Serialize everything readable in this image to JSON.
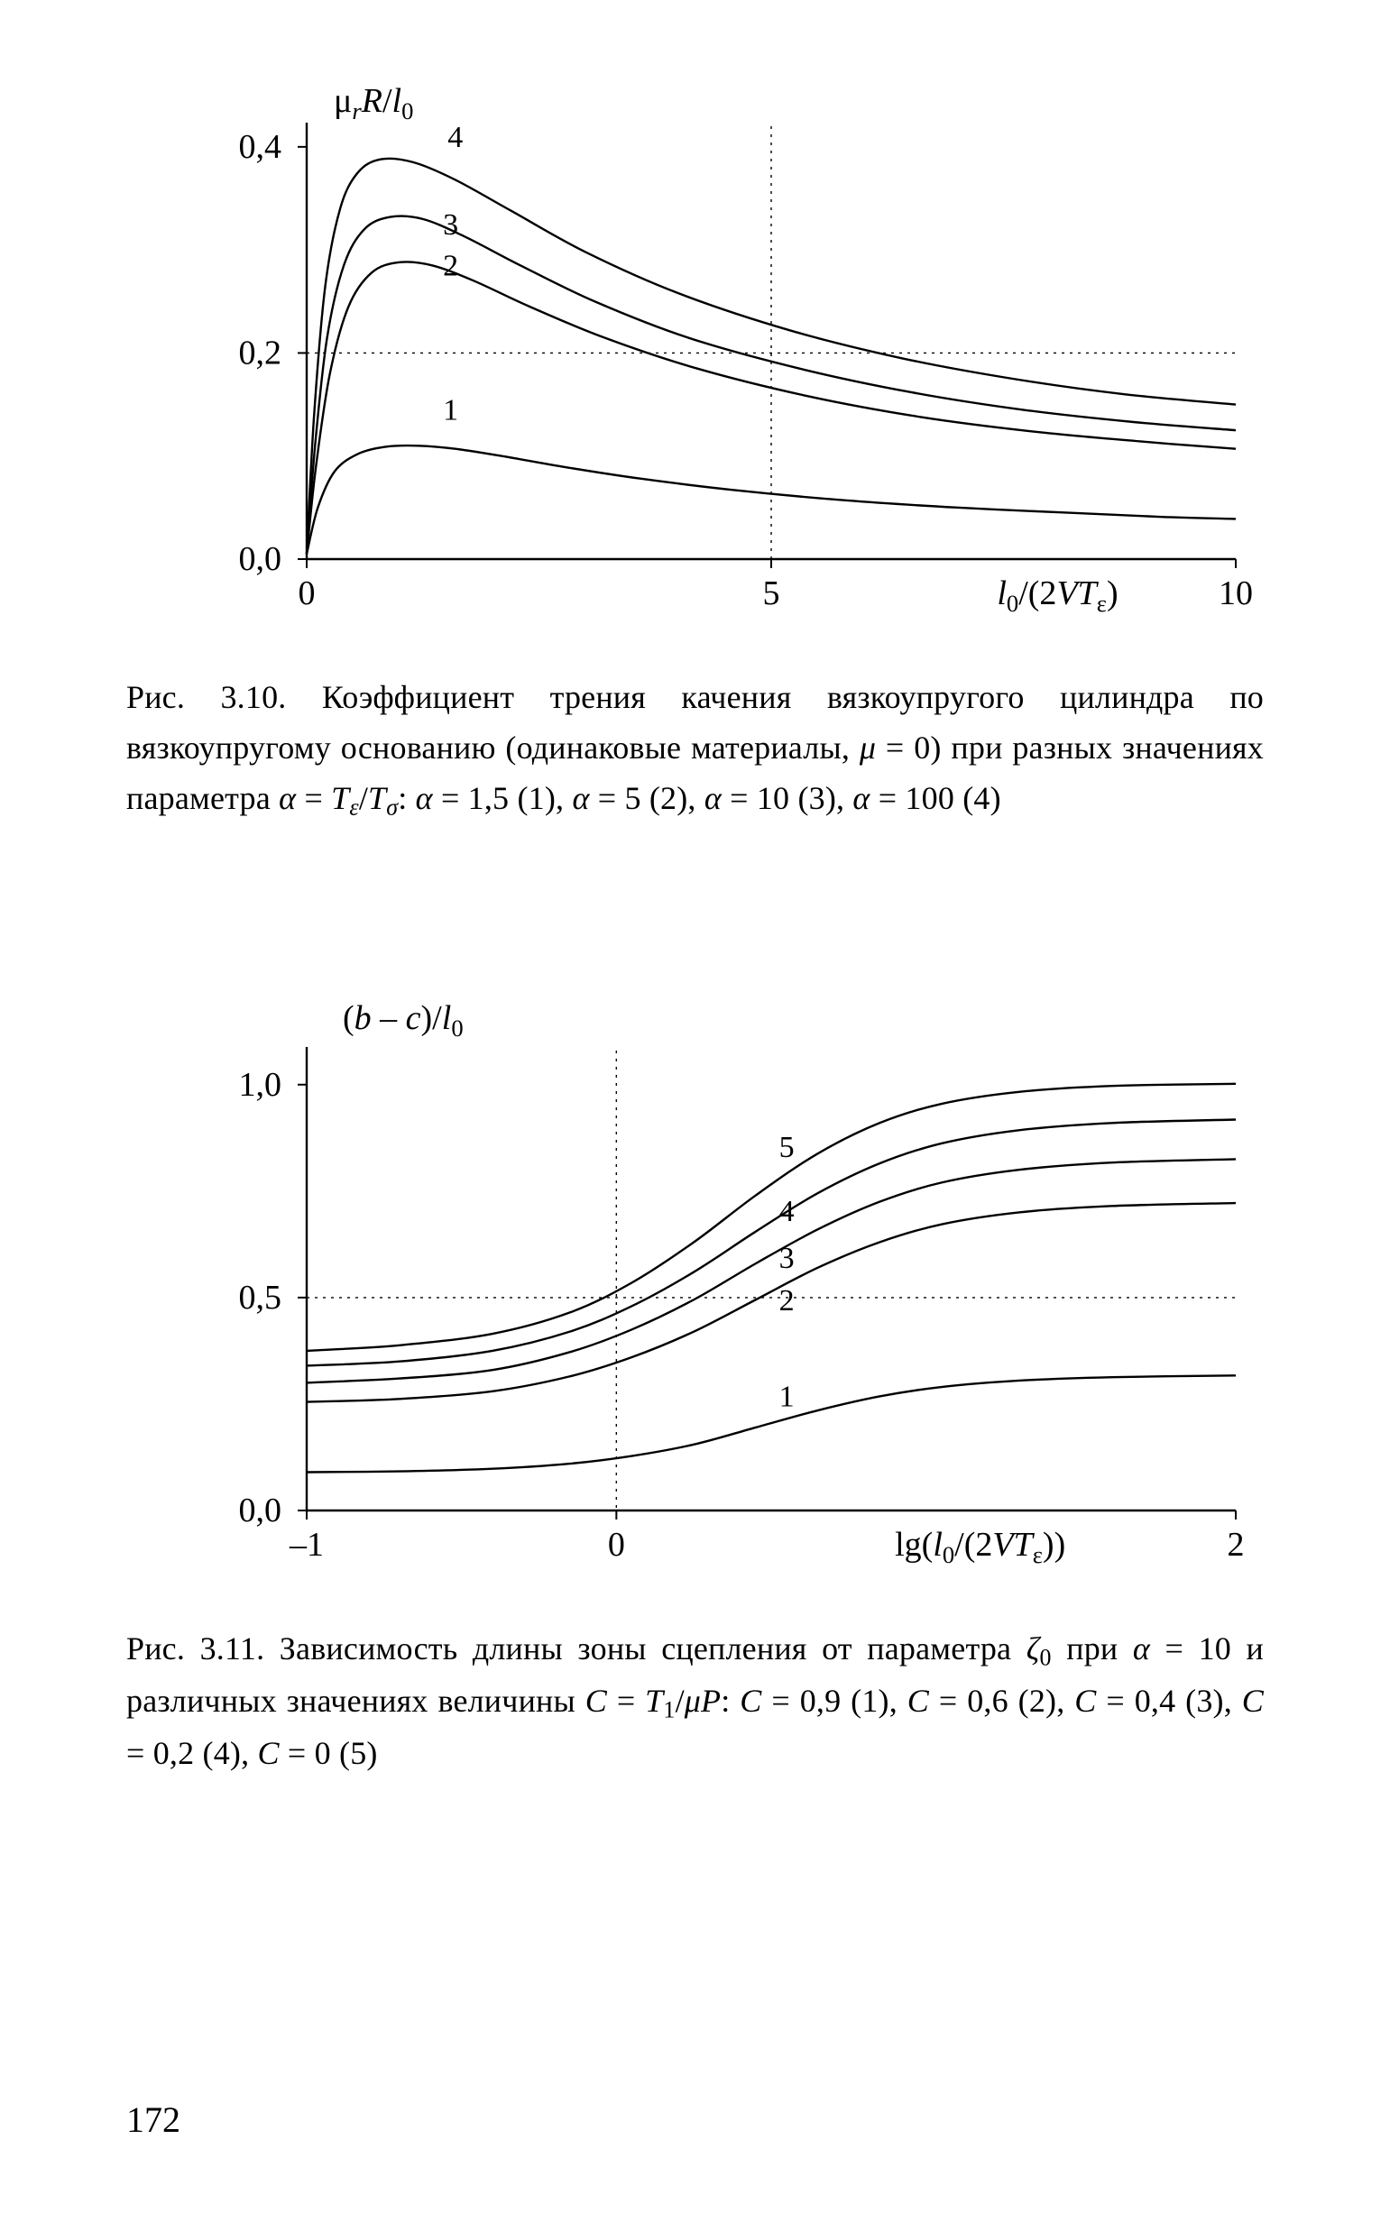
{
  "page_number": "172",
  "fig1": {
    "type": "line",
    "y_axis_label": "μᵣR/l₀",
    "x_axis_label_parts": {
      "l": "l",
      "sub1": "0",
      "mid": "/(2",
      "V": "V",
      "T": "T",
      "sub2": "ε",
      "end": ")"
    },
    "xlim": [
      0,
      10
    ],
    "ylim": [
      0,
      0.42
    ],
    "xticks": [
      0,
      5,
      10
    ],
    "xtick_labels": [
      "0",
      "5",
      "10"
    ],
    "yticks": [
      0.0,
      0.2,
      0.4
    ],
    "ytick_labels": [
      "0,0",
      "0,2",
      "0,4"
    ],
    "vgrid_at": [
      5
    ],
    "hgrid_at": [
      0.2
    ],
    "background_color": "#ffffff",
    "axis_color": "#000000",
    "grid_dash": "3,6",
    "line_color": "#000000",
    "line_width": 2.4,
    "curve_labels": {
      "1": {
        "x": 1.55,
        "y": 0.135
      },
      "2": {
        "x": 1.55,
        "y": 0.275
      },
      "3": {
        "x": 1.55,
        "y": 0.315
      },
      "4": {
        "x": 1.6,
        "y": 0.4
      }
    },
    "series": {
      "1": [
        [
          0,
          0.005
        ],
        [
          0.12,
          0.05
        ],
        [
          0.3,
          0.085
        ],
        [
          0.55,
          0.102
        ],
        [
          0.85,
          0.109
        ],
        [
          1.2,
          0.11
        ],
        [
          1.6,
          0.107
        ],
        [
          2.1,
          0.1
        ],
        [
          2.8,
          0.089
        ],
        [
          3.6,
          0.078
        ],
        [
          4.6,
          0.067
        ],
        [
          5.8,
          0.057
        ],
        [
          7.0,
          0.05
        ],
        [
          8.2,
          0.045
        ],
        [
          9.2,
          0.041
        ],
        [
          10.0,
          0.039
        ]
      ],
      "2": [
        [
          0,
          0.005
        ],
        [
          0.1,
          0.09
        ],
        [
          0.25,
          0.18
        ],
        [
          0.45,
          0.245
        ],
        [
          0.7,
          0.278
        ],
        [
          1.0,
          0.288
        ],
        [
          1.35,
          0.285
        ],
        [
          1.8,
          0.27
        ],
        [
          2.4,
          0.245
        ],
        [
          3.2,
          0.215
        ],
        [
          4.2,
          0.185
        ],
        [
          5.4,
          0.158
        ],
        [
          6.6,
          0.138
        ],
        [
          7.8,
          0.124
        ],
        [
          9.0,
          0.114
        ],
        [
          10.0,
          0.107
        ]
      ],
      "3": [
        [
          0,
          0.005
        ],
        [
          0.09,
          0.11
        ],
        [
          0.22,
          0.215
        ],
        [
          0.4,
          0.285
        ],
        [
          0.62,
          0.32
        ],
        [
          0.9,
          0.332
        ],
        [
          1.25,
          0.33
        ],
        [
          1.7,
          0.313
        ],
        [
          2.3,
          0.285
        ],
        [
          3.1,
          0.25
        ],
        [
          4.1,
          0.215
        ],
        [
          5.3,
          0.185
        ],
        [
          6.5,
          0.162
        ],
        [
          7.7,
          0.145
        ],
        [
          8.9,
          0.133
        ],
        [
          10.0,
          0.125
        ]
      ],
      "4": [
        [
          0,
          0.005
        ],
        [
          0.08,
          0.14
        ],
        [
          0.2,
          0.265
        ],
        [
          0.36,
          0.34
        ],
        [
          0.55,
          0.375
        ],
        [
          0.8,
          0.388
        ],
        [
          1.15,
          0.385
        ],
        [
          1.6,
          0.368
        ],
        [
          2.2,
          0.338
        ],
        [
          3.0,
          0.298
        ],
        [
          4.0,
          0.258
        ],
        [
          5.2,
          0.222
        ],
        [
          6.4,
          0.195
        ],
        [
          7.6,
          0.175
        ],
        [
          8.8,
          0.16
        ],
        [
          10.0,
          0.15
        ]
      ]
    },
    "caption_html": "Рис. 3.10. Коэффициент трения качения вязкоупругого цилиндра по вязкоупругому основанию (одинаковые материалы, <span class='ital'>μ</span> = 0) при разных значениях параметра <span class='ital'>α</span> = <span class='ital'>T<span class='sub'>ε</span></span>/<span class='ital'>T<span class='sub'>σ</span></span>: <span class='ital'>α</span> = 1,5 (1), <span class='ital'>α</span> = 5 (2), <span class='ital'>α</span> = 10 (3), <span class='ital'>α</span> = 100 (4)"
  },
  "fig2": {
    "type": "line",
    "y_axis_label_parts": {
      "open": "(",
      "b": "b",
      "dash": " – ",
      "c": "c",
      "close": ")/",
      "l": "l",
      "sub": "0"
    },
    "x_axis_label_parts": {
      "lg": "lg(",
      "l": "l",
      "sub1": "0",
      "mid": "/(2",
      "V": "V",
      "T": "T",
      "sub2": "ε",
      "end": "))"
    },
    "xlim": [
      -1,
      2
    ],
    "ylim": [
      0,
      1.08
    ],
    "xticks": [
      -1,
      0,
      2
    ],
    "xtick_labels": [
      "–1",
      "0",
      "2"
    ],
    "yticks": [
      0.0,
      0.5,
      1.0
    ],
    "ytick_labels": [
      "0,0",
      "0,5",
      "1,0"
    ],
    "vgrid_at": [
      0
    ],
    "hgrid_at": [
      0.5
    ],
    "background_color": "#ffffff",
    "axis_color": "#000000",
    "grid_dash": "3,6",
    "line_color": "#000000",
    "line_width": 2.4,
    "curve_labels": {
      "1": {
        "x": 0.55,
        "y": 0.245
      },
      "2": {
        "x": 0.55,
        "y": 0.47
      },
      "3": {
        "x": 0.55,
        "y": 0.57
      },
      "4": {
        "x": 0.55,
        "y": 0.68
      },
      "5": {
        "x": 0.55,
        "y": 0.83
      }
    },
    "series": {
      "1": [
        [
          -1.0,
          0.09
        ],
        [
          -0.7,
          0.092
        ],
        [
          -0.4,
          0.098
        ],
        [
          -0.15,
          0.11
        ],
        [
          0.05,
          0.128
        ],
        [
          0.25,
          0.155
        ],
        [
          0.45,
          0.195
        ],
        [
          0.65,
          0.235
        ],
        [
          0.85,
          0.268
        ],
        [
          1.05,
          0.29
        ],
        [
          1.3,
          0.305
        ],
        [
          1.6,
          0.313
        ],
        [
          2.0,
          0.317
        ]
      ],
      "2": [
        [
          -1.0,
          0.255
        ],
        [
          -0.7,
          0.262
        ],
        [
          -0.4,
          0.28
        ],
        [
          -0.15,
          0.315
        ],
        [
          0.05,
          0.36
        ],
        [
          0.25,
          0.42
        ],
        [
          0.45,
          0.495
        ],
        [
          0.65,
          0.57
        ],
        [
          0.85,
          0.63
        ],
        [
          1.05,
          0.672
        ],
        [
          1.3,
          0.7
        ],
        [
          1.6,
          0.715
        ],
        [
          2.0,
          0.722
        ]
      ],
      "3": [
        [
          -1.0,
          0.3
        ],
        [
          -0.7,
          0.31
        ],
        [
          -0.4,
          0.33
        ],
        [
          -0.15,
          0.372
        ],
        [
          0.05,
          0.425
        ],
        [
          0.25,
          0.495
        ],
        [
          0.45,
          0.58
        ],
        [
          0.65,
          0.66
        ],
        [
          0.85,
          0.725
        ],
        [
          1.05,
          0.77
        ],
        [
          1.3,
          0.8
        ],
        [
          1.6,
          0.817
        ],
        [
          2.0,
          0.825
        ]
      ],
      "4": [
        [
          -1.0,
          0.34
        ],
        [
          -0.7,
          0.35
        ],
        [
          -0.4,
          0.375
        ],
        [
          -0.15,
          0.42
        ],
        [
          0.05,
          0.48
        ],
        [
          0.25,
          0.56
        ],
        [
          0.45,
          0.655
        ],
        [
          0.65,
          0.745
        ],
        [
          0.85,
          0.815
        ],
        [
          1.05,
          0.862
        ],
        [
          1.3,
          0.893
        ],
        [
          1.6,
          0.91
        ],
        [
          2.0,
          0.918
        ]
      ],
      "5": [
        [
          -1.0,
          0.375
        ],
        [
          -0.7,
          0.388
        ],
        [
          -0.4,
          0.415
        ],
        [
          -0.15,
          0.465
        ],
        [
          0.05,
          0.535
        ],
        [
          0.25,
          0.63
        ],
        [
          0.45,
          0.74
        ],
        [
          0.65,
          0.838
        ],
        [
          0.85,
          0.91
        ],
        [
          1.05,
          0.955
        ],
        [
          1.3,
          0.983
        ],
        [
          1.6,
          0.997
        ],
        [
          2.0,
          1.002
        ]
      ]
    },
    "caption_html": "Рис. 3.11. Зависимость длины зоны сцепления от параметра <span class='ital'>ζ</span><span class='sub'>0</span> при <span class='ital'>α</span> = 10 и различных значениях величины <span class='ital'>C</span> = <span class='ital'>T</span><span class='sub'>1</span>/<span class='ital'>μP</span>: <span class='ital'>C</span> = 0,9 (1), <span class='ital'>C</span> = 0,6 (2), <span class='ital'>C</span> = 0,4 (3), <span class='ital'>C</span> = 0,2 (4), <span class='ital'>C</span> = 0 (5)"
  }
}
